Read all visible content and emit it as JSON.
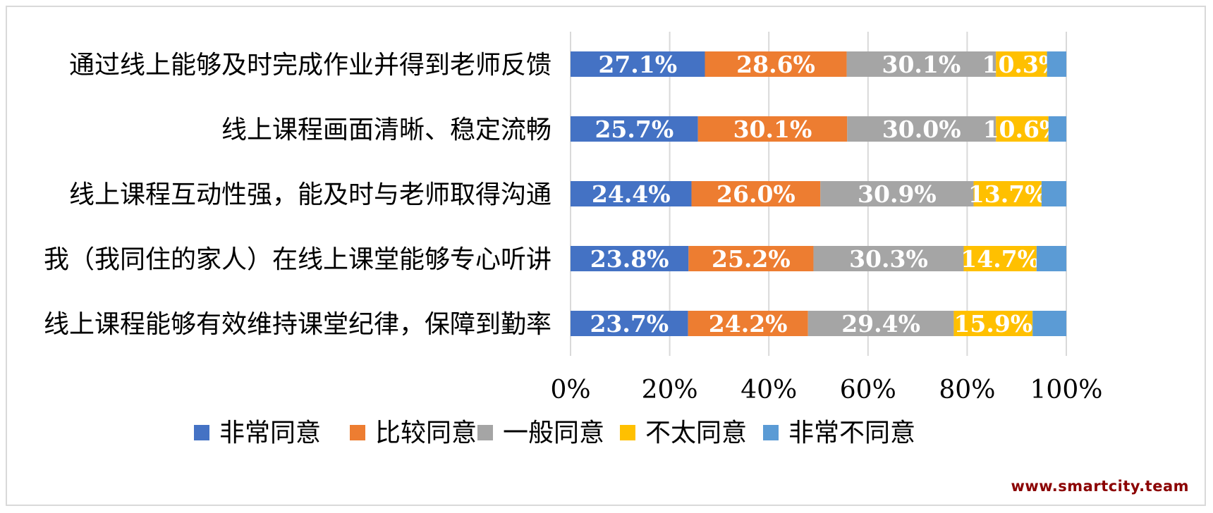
{
  "chart_data": {
    "type": "bar",
    "orientation": "horizontal",
    "stacked": "percent",
    "categories": [
      "通过线上能够及时完成作业并得到老师反馈",
      "线上课程画面清晰、稳定流畅",
      "线上课程互动性强，能及时与老师取得沟通",
      "我（我同住的家人）在线上课堂能够专心听讲",
      "线上课程能够有效维持课堂纪律，保障到勤率"
    ],
    "series": [
      {
        "name": "非常同意",
        "color": "#4472C4",
        "values": [
          27.1,
          25.7,
          24.4,
          23.8,
          23.7
        ],
        "labels": [
          "27.1%",
          "25.7%",
          "24.4%",
          "23.8%",
          "23.7%"
        ]
      },
      {
        "name": "比较同意",
        "color": "#ED7D31",
        "values": [
          28.6,
          30.1,
          26.0,
          25.2,
          24.2
        ],
        "labels": [
          "28.6%",
          "30.1%",
          "26.0%",
          "25.2%",
          "24.2%"
        ]
      },
      {
        "name": "一般同意",
        "color": "#A5A5A5",
        "values": [
          30.1,
          30.0,
          30.9,
          30.3,
          29.4
        ],
        "labels": [
          "30.1%",
          "30.0%",
          "30.9%",
          "30.3%",
          "29.4%"
        ]
      },
      {
        "name": "不太同意",
        "color": "#FFC000",
        "values": [
          10.3,
          10.6,
          13.7,
          14.7,
          15.9
        ],
        "labels": [
          "10.3%",
          "10.6%",
          "13.7%",
          "14.7%",
          "15.9%"
        ]
      },
      {
        "name": "非常不同意",
        "color": "#5B9BD5",
        "values": [
          3.9,
          3.6,
          5.0,
          6.0,
          6.8
        ],
        "labels": [
          "",
          "",
          "",
          "",
          ""
        ]
      }
    ],
    "xlim": [
      0,
      100
    ],
    "xticks": [
      "0%",
      "20%",
      "40%",
      "60%",
      "80%",
      "100%"
    ],
    "grid": true,
    "legend_position": "bottom",
    "title": "",
    "xlabel": "",
    "ylabel": ""
  },
  "watermark": "www.smartcity.team"
}
